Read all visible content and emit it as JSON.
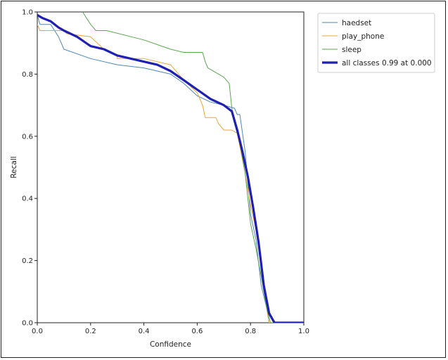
{
  "chart_data": {
    "type": "line",
    "title": "",
    "xlabel": "Confidence",
    "ylabel": "Recall",
    "xlim": [
      0,
      1
    ],
    "ylim": [
      0,
      1
    ],
    "x_ticks": [
      "0.0",
      "0.2",
      "0.4",
      "0.6",
      "0.8",
      "1.0"
    ],
    "y_ticks": [
      "0.0",
      "0.2",
      "0.4",
      "0.6",
      "0.8",
      "1.0"
    ],
    "grid": false,
    "legend_position": "outside-right",
    "series": [
      {
        "name": "haedset",
        "color": "#4f86b8",
        "width": 1,
        "points": [
          [
            0,
            0.99
          ],
          [
            0.01,
            0.96
          ],
          [
            0.05,
            0.96
          ],
          [
            0.08,
            0.92
          ],
          [
            0.1,
            0.88
          ],
          [
            0.2,
            0.85
          ],
          [
            0.3,
            0.83
          ],
          [
            0.4,
            0.82
          ],
          [
            0.5,
            0.8
          ],
          [
            0.55,
            0.77
          ],
          [
            0.6,
            0.73
          ],
          [
            0.65,
            0.71
          ],
          [
            0.7,
            0.7
          ],
          [
            0.74,
            0.69
          ],
          [
            0.75,
            0.67
          ],
          [
            0.76,
            0.67
          ],
          [
            0.78,
            0.55
          ],
          [
            0.8,
            0.35
          ],
          [
            0.82,
            0.27
          ],
          [
            0.84,
            0.12
          ],
          [
            0.86,
            0.05
          ],
          [
            0.87,
            0.0
          ],
          [
            1.0,
            0.0
          ]
        ]
      },
      {
        "name": "play_phone",
        "color": "#e8a63a",
        "width": 1,
        "points": [
          [
            0,
            0.96
          ],
          [
            0.01,
            0.94
          ],
          [
            0.1,
            0.94
          ],
          [
            0.11,
            0.93
          ],
          [
            0.2,
            0.92
          ],
          [
            0.25,
            0.88
          ],
          [
            0.3,
            0.86
          ],
          [
            0.3,
            0.85
          ],
          [
            0.4,
            0.85
          ],
          [
            0.5,
            0.83
          ],
          [
            0.55,
            0.78
          ],
          [
            0.6,
            0.74
          ],
          [
            0.62,
            0.7
          ],
          [
            0.63,
            0.66
          ],
          [
            0.67,
            0.66
          ],
          [
            0.68,
            0.64
          ],
          [
            0.7,
            0.62
          ],
          [
            0.73,
            0.62
          ],
          [
            0.75,
            0.61
          ],
          [
            0.78,
            0.48
          ],
          [
            0.8,
            0.38
          ],
          [
            0.82,
            0.3
          ],
          [
            0.84,
            0.18
          ],
          [
            0.86,
            0.05
          ],
          [
            0.87,
            0.0
          ],
          [
            1.0,
            0.0
          ]
        ]
      },
      {
        "name": "sleep",
        "color": "#5aa64f",
        "width": 1,
        "points": [
          [
            0.17,
            1.0
          ],
          [
            0.2,
            0.96
          ],
          [
            0.22,
            0.94
          ],
          [
            0.26,
            0.94
          ],
          [
            0.4,
            0.91
          ],
          [
            0.5,
            0.88
          ],
          [
            0.55,
            0.87
          ],
          [
            0.62,
            0.87
          ],
          [
            0.63,
            0.84
          ],
          [
            0.64,
            0.82
          ],
          [
            0.7,
            0.79
          ],
          [
            0.72,
            0.77
          ],
          [
            0.73,
            0.69
          ],
          [
            0.74,
            0.64
          ],
          [
            0.76,
            0.58
          ],
          [
            0.78,
            0.48
          ],
          [
            0.8,
            0.32
          ],
          [
            0.82,
            0.24
          ],
          [
            0.84,
            0.15
          ],
          [
            0.86,
            0.05
          ],
          [
            0.875,
            0.0
          ],
          [
            1.0,
            0.0
          ]
        ]
      },
      {
        "name": "all classes 0.99 at 0.000",
        "color": "#1f1fb4",
        "width": 3.2,
        "points": [
          [
            0,
            0.99
          ],
          [
            0.02,
            0.98
          ],
          [
            0.05,
            0.97
          ],
          [
            0.08,
            0.95
          ],
          [
            0.1,
            0.94
          ],
          [
            0.15,
            0.92
          ],
          [
            0.2,
            0.89
          ],
          [
            0.25,
            0.88
          ],
          [
            0.3,
            0.86
          ],
          [
            0.35,
            0.85
          ],
          [
            0.4,
            0.84
          ],
          [
            0.45,
            0.83
          ],
          [
            0.5,
            0.81
          ],
          [
            0.55,
            0.78
          ],
          [
            0.6,
            0.75
          ],
          [
            0.65,
            0.72
          ],
          [
            0.7,
            0.7
          ],
          [
            0.73,
            0.68
          ],
          [
            0.75,
            0.62
          ],
          [
            0.77,
            0.55
          ],
          [
            0.79,
            0.47
          ],
          [
            0.81,
            0.37
          ],
          [
            0.83,
            0.26
          ],
          [
            0.85,
            0.12
          ],
          [
            0.87,
            0.03
          ],
          [
            0.89,
            0.0
          ],
          [
            1.0,
            0.0
          ]
        ]
      }
    ]
  }
}
